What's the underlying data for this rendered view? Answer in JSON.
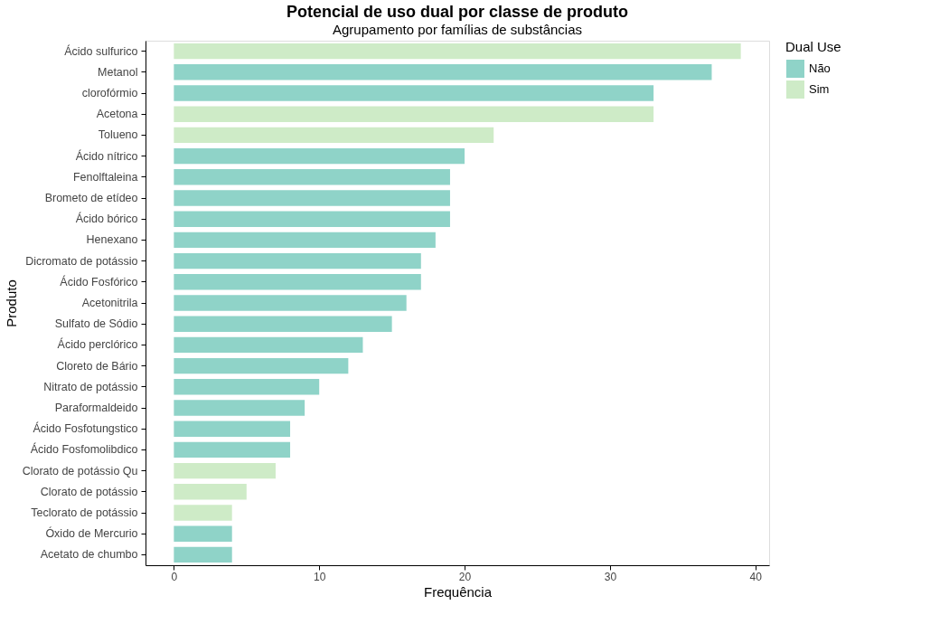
{
  "chart_data": {
    "type": "bar",
    "orientation": "horizontal",
    "title": "Potencial de uso dual por classe de produto",
    "subtitle": "Agrupamento por famílias de substâncias",
    "xlabel": "Frequência",
    "ylabel": "Produto",
    "legend_title": "Dual Use",
    "categories": [
      "Ácido sulfurico",
      "Metanol",
      "clorofórmio",
      "Acetona",
      "Tolueno",
      "Ácido nítrico",
      "Fenolftaleina",
      "Brometo de etídeo",
      "Ácido bórico",
      "Henexano",
      "Dicromato de potássio",
      "Ácido Fosfórico",
      "Acetonitrila",
      "Sulfato de Sódio",
      "Ácido perclórico",
      "Cloreto de Bário",
      "Nitrato de potássio",
      "Paraformaldeido",
      "Ácido Fosfotungstico",
      "Ácido Fosfomolibdico",
      "Clorato de potássio Qu",
      "Clorato de potássio",
      "Teclorato de potássio",
      "Óxido de Mercurio",
      "Acetato de chumbo"
    ],
    "series": [
      {
        "name": "Não",
        "color": "#8fd3c8",
        "values": [
          null,
          37,
          33,
          null,
          null,
          20,
          19,
          19,
          19,
          18,
          17,
          17,
          16,
          15,
          13,
          12,
          10,
          9,
          8,
          8,
          null,
          null,
          null,
          4,
          4
        ]
      },
      {
        "name": "Sim",
        "color": "#ceebc7",
        "values": [
          39,
          null,
          null,
          33,
          22,
          null,
          null,
          null,
          null,
          null,
          null,
          null,
          null,
          null,
          null,
          null,
          null,
          null,
          null,
          null,
          7,
          5,
          4,
          null,
          null
        ]
      }
    ],
    "xlim": [
      -1.95,
      40.95
    ],
    "xticks": [
      0,
      10,
      20,
      30,
      40
    ],
    "grid": false,
    "legend": "right"
  }
}
